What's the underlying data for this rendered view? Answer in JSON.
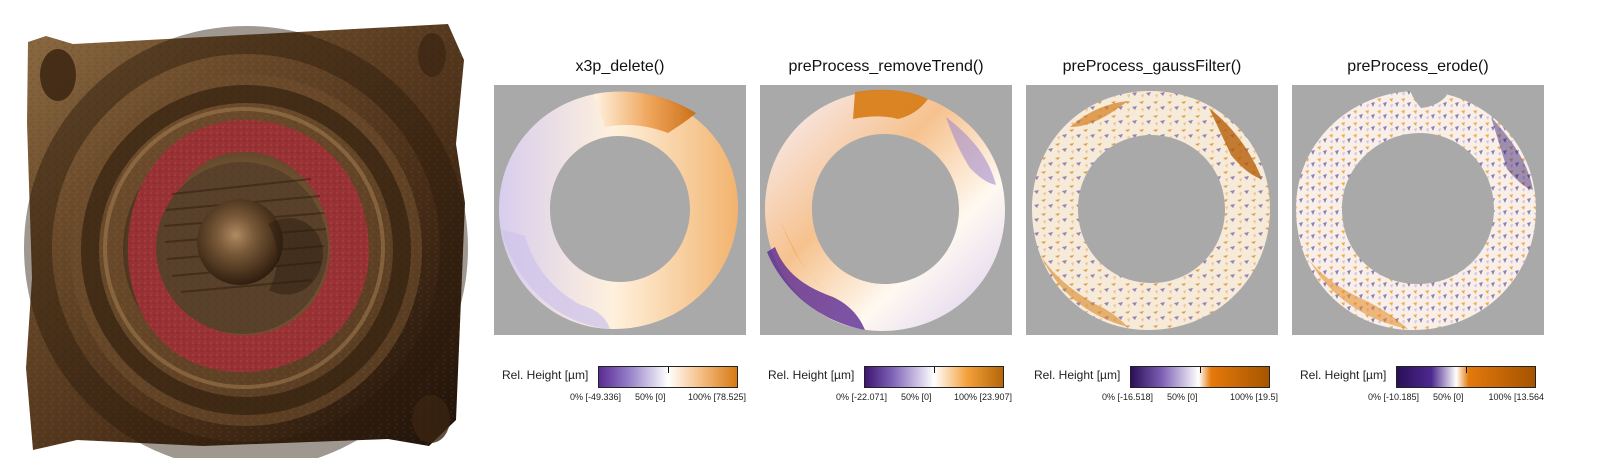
{
  "legend_title": "Rel. Height [µm]",
  "panels": [
    {
      "title": "x3p_delete()",
      "tick_min": "0% [-49.336]",
      "tick_mid": "50% [0]",
      "tick_max": "100% [78.525]"
    },
    {
      "title": "preProcess_removeTrend()",
      "tick_min": "0% [-22.071]",
      "tick_mid": "50% [0]",
      "tick_max": "100% [23.907]"
    },
    {
      "title": "preProcess_gaussFilter()",
      "tick_min": "0% [-16.518]",
      "tick_mid": "50% [0]",
      "tick_max": "100% [19.5]"
    },
    {
      "title": "preProcess_erode()",
      "tick_min": "0% [-10.185]",
      "tick_mid": "50% [0]",
      "tick_max": "100% [13.564"
    }
  ],
  "colors": {
    "background_gray": "#a9a9a9",
    "low": "#3c1f72",
    "mid": "#ffffff",
    "high": "#b55a00",
    "scan_brown": "#6a4a2a",
    "highlight_red": "#9a2f34"
  }
}
